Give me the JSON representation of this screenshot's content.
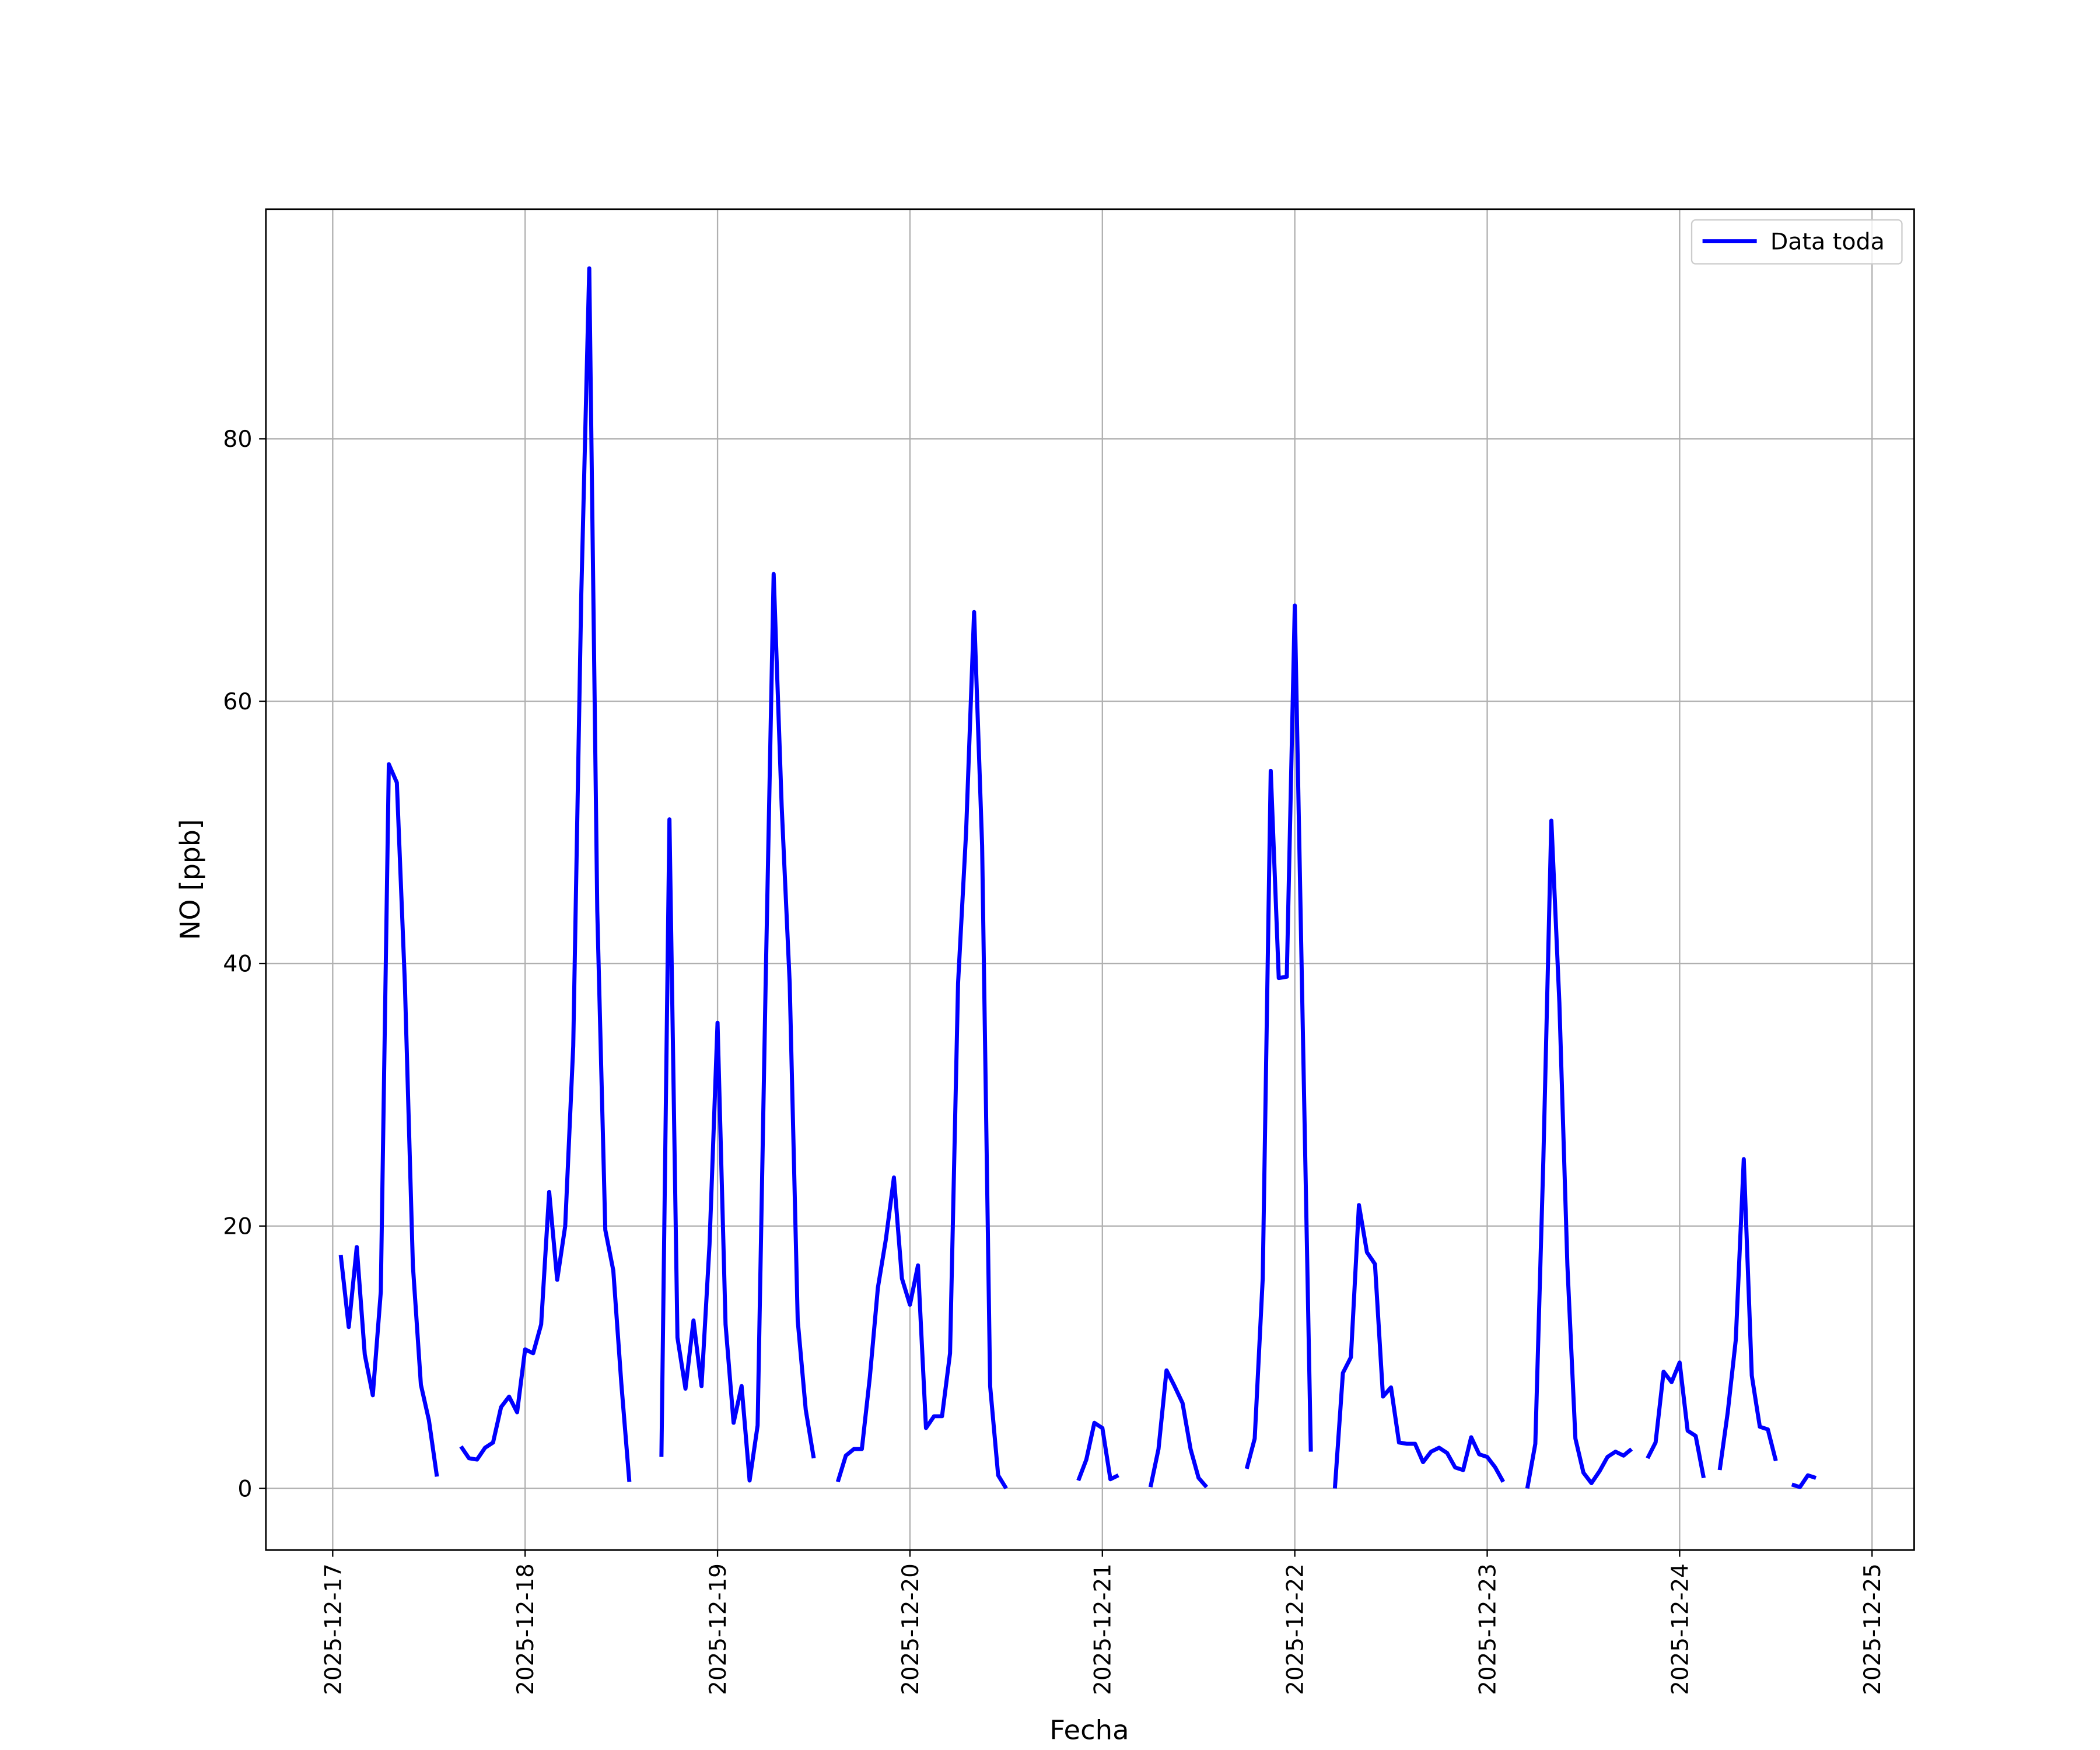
{
  "chart_data": {
    "type": "line",
    "xlabel": "Fecha",
    "ylabel": "NO [ppb]",
    "x": [
      "2025-12-17T01:00",
      "2025-12-17T02:00",
      "2025-12-17T03:00",
      "2025-12-17T04:00",
      "2025-12-17T05:00",
      "2025-12-17T06:00",
      "2025-12-17T07:00",
      "2025-12-17T08:00",
      "2025-12-17T09:00",
      "2025-12-17T10:00",
      "2025-12-17T11:00",
      "2025-12-17T12:00",
      "2025-12-17T13:00",
      "2025-12-17T14:00",
      "2025-12-17T16:00",
      "2025-12-17T17:00",
      "2025-12-17T18:00",
      "2025-12-17T19:00",
      "2025-12-17T20:00",
      "2025-12-17T21:00",
      "2025-12-17T22:00",
      "2025-12-17T23:00",
      "2025-12-18T00:00",
      "2025-12-18T01:00",
      "2025-12-18T02:00",
      "2025-12-18T03:00",
      "2025-12-18T04:00",
      "2025-12-18T05:00",
      "2025-12-18T06:00",
      "2025-12-18T07:00",
      "2025-12-18T08:00",
      "2025-12-18T09:00",
      "2025-12-18T10:00",
      "2025-12-18T11:00",
      "2025-12-18T12:00",
      "2025-12-18T13:00",
      "2025-12-18T14:00",
      "2025-12-18T17:00",
      "2025-12-18T18:00",
      "2025-12-18T19:00",
      "2025-12-18T20:00",
      "2025-12-18T21:00",
      "2025-12-18T22:00",
      "2025-12-18T23:00",
      "2025-12-19T00:00",
      "2025-12-19T01:00",
      "2025-12-19T02:00",
      "2025-12-19T03:00",
      "2025-12-19T04:00",
      "2025-12-19T05:00",
      "2025-12-19T06:00",
      "2025-12-19T07:00",
      "2025-12-19T08:00",
      "2025-12-19T09:00",
      "2025-12-19T10:00",
      "2025-12-19T11:00",
      "2025-12-19T12:00",
      "2025-12-19T13:00",
      "2025-12-19T15:00",
      "2025-12-19T16:00",
      "2025-12-19T17:00",
      "2025-12-19T18:00",
      "2025-12-19T19:00",
      "2025-12-19T20:00",
      "2025-12-19T21:00",
      "2025-12-19T22:00",
      "2025-12-19T23:00",
      "2025-12-20T00:00",
      "2025-12-20T01:00",
      "2025-12-20T02:00",
      "2025-12-20T03:00",
      "2025-12-20T04:00",
      "2025-12-20T05:00",
      "2025-12-20T06:00",
      "2025-12-20T07:00",
      "2025-12-20T08:00",
      "2025-12-20T09:00",
      "2025-12-20T10:00",
      "2025-12-20T11:00",
      "2025-12-20T12:00",
      "2025-12-20T13:00",
      "2025-12-20T21:00",
      "2025-12-20T22:00",
      "2025-12-20T23:00",
      "2025-12-21T00:00",
      "2025-12-21T01:00",
      "2025-12-21T02:00",
      "2025-12-21T03:00",
      "2025-12-21T06:00",
      "2025-12-21T07:00",
      "2025-12-21T08:00",
      "2025-12-21T09:00",
      "2025-12-21T10:00",
      "2025-12-21T11:00",
      "2025-12-21T12:00",
      "2025-12-21T13:00",
      "2025-12-21T14:00",
      "2025-12-21T18:00",
      "2025-12-21T19:00",
      "2025-12-21T20:00",
      "2025-12-21T21:00",
      "2025-12-21T22:00",
      "2025-12-21T23:00",
      "2025-12-22T00:00",
      "2025-12-22T01:00",
      "2025-12-22T02:00",
      "2025-12-22T03:00",
      "2025-12-22T05:00",
      "2025-12-22T06:00",
      "2025-12-22T07:00",
      "2025-12-22T08:00",
      "2025-12-22T09:00",
      "2025-12-22T10:00",
      "2025-12-22T11:00",
      "2025-12-22T12:00",
      "2025-12-22T13:00",
      "2025-12-22T14:00",
      "2025-12-22T15:00",
      "2025-12-22T16:00",
      "2025-12-22T17:00",
      "2025-12-22T18:00",
      "2025-12-22T19:00",
      "2025-12-22T20:00",
      "2025-12-22T21:00",
      "2025-12-22T22:00",
      "2025-12-22T23:00",
      "2025-12-23T00:00",
      "2025-12-23T01:00",
      "2025-12-23T02:00",
      "2025-12-23T03:00",
      "2025-12-23T05:00",
      "2025-12-23T06:00",
      "2025-12-23T07:00",
      "2025-12-23T08:00",
      "2025-12-23T09:00",
      "2025-12-23T10:00",
      "2025-12-23T11:00",
      "2025-12-23T12:00",
      "2025-12-23T13:00",
      "2025-12-23T14:00",
      "2025-12-23T15:00",
      "2025-12-23T16:00",
      "2025-12-23T17:00",
      "2025-12-23T18:00",
      "2025-12-23T19:00",
      "2025-12-23T20:00",
      "2025-12-23T21:00",
      "2025-12-23T22:00",
      "2025-12-23T23:00",
      "2025-12-24T00:00",
      "2025-12-24T01:00",
      "2025-12-24T02:00",
      "2025-12-24T03:00",
      "2025-12-24T04:00",
      "2025-12-24T05:00",
      "2025-12-24T06:00",
      "2025-12-24T07:00",
      "2025-12-24T08:00",
      "2025-12-24T09:00",
      "2025-12-24T10:00",
      "2025-12-24T11:00",
      "2025-12-24T12:00",
      "2025-12-24T13:00",
      "2025-12-24T14:00",
      "2025-12-24T15:00",
      "2025-12-24T16:00",
      "2025-12-24T17:00"
    ],
    "series": [
      {
        "name": "Data toda",
        "color": "#0000ff",
        "values": [
          17.8,
          12.3,
          18.4,
          10.2,
          7.1,
          15,
          55.2,
          53.8,
          38.5,
          17,
          7.9,
          5.2,
          0.9,
          null,
          3.2,
          2.3,
          2.2,
          3.1,
          3.5,
          6.2,
          7,
          5.8,
          10.6,
          10.3,
          12.5,
          22.6,
          15.9,
          20,
          33.7,
          68,
          93,
          44,
          19.7,
          16.6,
          8,
          0.5,
          null,
          2.4,
          51,
          11.5,
          7.6,
          12.8,
          7.8,
          18.6,
          35.5,
          12.5,
          5,
          7.8,
          0.6,
          4.8,
          38.5,
          69.7,
          52,
          38.5,
          12.8,
          6,
          2.3,
          null,
          0.5,
          2.5,
          3,
          3,
          8.5,
          15.3,
          19,
          23.7,
          16,
          14,
          17,
          4.6,
          5.5,
          5.5,
          10.3,
          38.5,
          50,
          66.8,
          49,
          7.8,
          1,
          0,
          null,
          0.6,
          2.2,
          5,
          4.6,
          0.7,
          1,
          null,
          0.1,
          3,
          9,
          7.8,
          6.5,
          3,
          0.8,
          0.1,
          null,
          1.5,
          3.8,
          16,
          54.7,
          38.9,
          39,
          67.3,
          35,
          2.8,
          null,
          0,
          8.8,
          10,
          21.6,
          18,
          17.1,
          7,
          7.7,
          3.5,
          3.4,
          3.4,
          2,
          2.8,
          3.1,
          2.7,
          1.6,
          1.4,
          3.9,
          2.6,
          2.4,
          1.6,
          0.5,
          null,
          0,
          3.4,
          25,
          50.9,
          37,
          17,
          3.8,
          1.2,
          0.4,
          1.3,
          2.4,
          2.8,
          2.5,
          3,
          null,
          2.3,
          3.5,
          8.9,
          8.1,
          9.6,
          4.4,
          4,
          0.8,
          null,
          1.4,
          5.8,
          11.3,
          25.1,
          8.6,
          4.7,
          4.5,
          2.1,
          null,
          0.3,
          0.1,
          1,
          0.8
        ]
      }
    ],
    "xlim": [
      "2025-12-16T15:40",
      "2025-12-25T05:15"
    ],
    "xticks": [
      "2025-12-17",
      "2025-12-18",
      "2025-12-19",
      "2025-12-20",
      "2025-12-21",
      "2025-12-22",
      "2025-12-23",
      "2025-12-24",
      "2025-12-25"
    ],
    "ylim": [
      -4.7,
      97.5
    ],
    "yticks": [
      0,
      20,
      40,
      60,
      80
    ],
    "grid": true,
    "legend": "upper right"
  }
}
